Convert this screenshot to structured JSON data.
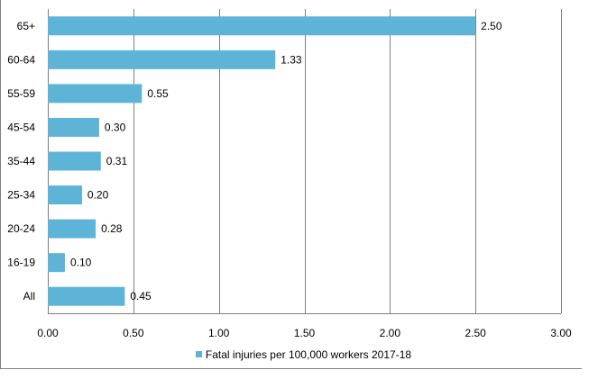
{
  "chart_data": {
    "type": "bar",
    "orientation": "horizontal",
    "categories": [
      "65+",
      "60-64",
      "55-59",
      "45-54",
      "35-44",
      "25-34",
      "20-24",
      "16-19",
      "All"
    ],
    "series": [
      {
        "name": "Fatal injuries per 100,000 workers 2017-18",
        "values": [
          2.5,
          1.33,
          0.55,
          0.3,
          0.31,
          0.2,
          0.28,
          0.1,
          0.45
        ]
      }
    ],
    "data_labels": [
      "2.50",
      "1.33",
      "0.55",
      "0.30",
      "0.31",
      "0.20",
      "0.28",
      "0.10",
      "0.45"
    ],
    "x_ticks": [
      "0.00",
      "0.50",
      "1.00",
      "1.50",
      "2.00",
      "2.50",
      "3.00"
    ],
    "xlim": [
      0,
      3
    ],
    "grid": "vertical",
    "legend": "bottom",
    "bar_color": "#5eb4d6",
    "grid_color": "#7f7f7f"
  }
}
